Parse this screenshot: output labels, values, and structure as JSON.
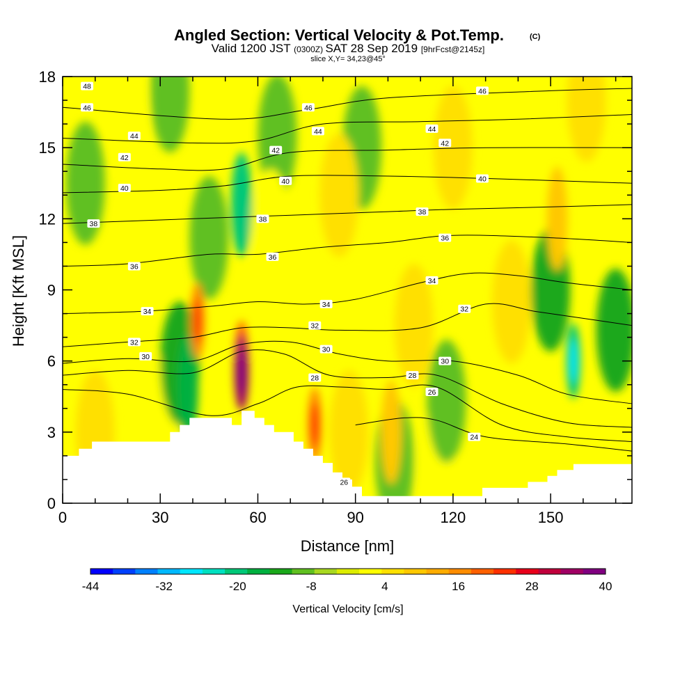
{
  "header": {
    "title": "Angled Section: Vertical Velocity & Pot.Temp.",
    "copyright": "(C)",
    "valid_prefix": "Valid 1200 JST",
    "valid_utc": "(0300Z)",
    "valid_date": "SAT 28 Sep 2019",
    "forecast": "[9hrFcst@2145z]",
    "slice": "slice X,Y= 34,23@45°"
  },
  "chart_data": {
    "type": "heatmap",
    "title": "Angled Section: Vertical Velocity & Pot.Temp.",
    "xlabel": "Distance [nm]",
    "ylabel": "Height [Kft MSL]",
    "xlim": [
      0,
      175
    ],
    "ylim": [
      0,
      18
    ],
    "x_ticks": [
      0,
      30,
      60,
      90,
      120,
      150
    ],
    "y_ticks": [
      0,
      3,
      6,
      9,
      12,
      15,
      18
    ],
    "grid": false,
    "colorbar": {
      "title": "Vertical Velocity [cm/s]",
      "placement": "bottom",
      "min": -44,
      "max": 40,
      "step": 4,
      "tick_values": [
        -44,
        -32,
        -20,
        -8,
        4,
        16,
        28,
        40
      ],
      "colors": [
        "#0000ff",
        "#0040ff",
        "#0080ff",
        "#00b8ff",
        "#00e6ff",
        "#00e0c0",
        "#00c878",
        "#00b040",
        "#1aa81a",
        "#60c020",
        "#a8d820",
        "#dcec00",
        "#ffff00",
        "#ffe000",
        "#ffc800",
        "#ffac00",
        "#ff8c00",
        "#ff6000",
        "#ff3000",
        "#e8001a",
        "#c0003c",
        "#a00064",
        "#800080"
      ]
    },
    "terrain": [
      [
        0,
        2.0
      ],
      [
        5,
        2.0
      ],
      [
        5,
        2.3
      ],
      [
        9,
        2.3
      ],
      [
        9,
        2.6
      ],
      [
        33,
        2.6
      ],
      [
        33,
        3.0
      ],
      [
        36,
        3.0
      ],
      [
        36,
        3.3
      ],
      [
        39,
        3.3
      ],
      [
        39,
        3.6
      ],
      [
        52,
        3.6
      ],
      [
        52,
        3.3
      ],
      [
        55,
        3.3
      ],
      [
        55,
        3.9
      ],
      [
        59,
        3.9
      ],
      [
        59,
        3.6
      ],
      [
        62,
        3.6
      ],
      [
        62,
        3.3
      ],
      [
        65,
        3.3
      ],
      [
        65,
        3.0
      ],
      [
        71,
        3.0
      ],
      [
        71,
        2.6
      ],
      [
        74,
        2.6
      ],
      [
        74,
        2.3
      ],
      [
        77,
        2.3
      ],
      [
        77,
        2.0
      ],
      [
        80,
        2.0
      ],
      [
        80,
        1.7
      ],
      [
        83,
        1.7
      ],
      [
        83,
        1.3
      ],
      [
        86,
        1.3
      ],
      [
        86,
        1.0
      ],
      [
        89,
        1.0
      ],
      [
        89,
        0.7
      ],
      [
        92,
        0.7
      ],
      [
        92,
        0.3
      ],
      [
        129,
        0.3
      ],
      [
        129,
        0.65
      ],
      [
        143,
        0.65
      ],
      [
        143,
        0.9
      ],
      [
        149,
        0.9
      ],
      [
        149,
        1.15
      ],
      [
        152,
        1.15
      ],
      [
        152,
        1.4
      ],
      [
        157,
        1.4
      ],
      [
        157,
        1.65
      ],
      [
        175,
        1.65
      ]
    ],
    "vertical_velocity_features": [
      {
        "x": 55,
        "y": 5.5,
        "value": 40
      },
      {
        "x": 55,
        "y": 6.1,
        "value": 24
      },
      {
        "x": 41.5,
        "y": 7.7,
        "value": 20
      },
      {
        "x": 77.5,
        "y": 3.3,
        "value": 22
      },
      {
        "x": 101,
        "y": 3.0,
        "value": 14
      },
      {
        "x": 157,
        "y": 6.0,
        "value": -20
      },
      {
        "x": 55,
        "y": 12.6,
        "value": -18
      },
      {
        "x": 38.5,
        "y": 4.9,
        "value": -16
      },
      {
        "x": 7,
        "y": 13.5,
        "value": -8
      },
      {
        "x": 102,
        "y": 1.8,
        "value": -8
      },
      {
        "x": 150,
        "y": 9.0,
        "value": -10
      },
      {
        "x": 36,
        "y": 5.9,
        "value": -10
      },
      {
        "x": 45,
        "y": 11.2,
        "value": -8
      },
      {
        "x": 92,
        "y": 15.0,
        "value": -6
      },
      {
        "x": 118,
        "y": 4.3,
        "value": -8
      },
      {
        "x": 170,
        "y": 7.3,
        "value": -10
      },
      {
        "x": 33,
        "y": 17.4,
        "value": -6
      },
      {
        "x": 66,
        "y": 15.5,
        "value": -6
      },
      {
        "x": 152,
        "y": 12.0,
        "value": 12
      },
      {
        "x": 161,
        "y": 17.0,
        "value": 8
      },
      {
        "x": 120,
        "y": 15.0,
        "value": 8
      },
      {
        "x": 138,
        "y": 8.5,
        "value": 10
      },
      {
        "x": 85,
        "y": 13.0,
        "value": 8
      },
      {
        "x": 70,
        "y": 9.0,
        "value": 6
      },
      {
        "x": 108,
        "y": 7.5,
        "value": 8
      },
      {
        "x": 10,
        "y": 3.0,
        "value": 8
      },
      {
        "x": 30,
        "y": 3.6,
        "value": 6
      },
      {
        "x": 64,
        "y": 11.5,
        "value": 6
      },
      {
        "x": 140,
        "y": 13.5,
        "value": 6
      },
      {
        "x": 88,
        "y": 3.0,
        "value": 8
      },
      {
        "x": 115,
        "y": 1.6,
        "value": 4
      },
      {
        "x": 20,
        "y": 16.5,
        "value": 4
      }
    ],
    "theta_contours": [
      {
        "value": 48,
        "points": [
          [
            0,
            18.0
          ],
          [
            175,
            18.0
          ]
        ]
      },
      {
        "value": 46,
        "points": [
          [
            0,
            16.7
          ],
          [
            50,
            16.2
          ],
          [
            75,
            16.6
          ],
          [
            100,
            17.1
          ],
          [
            150,
            17.4
          ],
          [
            175,
            17.5
          ]
        ]
      },
      {
        "value": 44,
        "points": [
          [
            0,
            15.4
          ],
          [
            40,
            15.2
          ],
          [
            60,
            15.3
          ],
          [
            80,
            16.0
          ],
          [
            110,
            16.1
          ],
          [
            140,
            16.2
          ],
          [
            175,
            16.4
          ]
        ]
      },
      {
        "value": 42,
        "points": [
          [
            0,
            14.3
          ],
          [
            30,
            14.1
          ],
          [
            50,
            14.1
          ],
          [
            70,
            14.8
          ],
          [
            100,
            14.9
          ],
          [
            130,
            15.0
          ],
          [
            175,
            15.0
          ]
        ]
      },
      {
        "value": 40,
        "points": [
          [
            0,
            13.1
          ],
          [
            30,
            13.2
          ],
          [
            50,
            13.4
          ],
          [
            70,
            13.8
          ],
          [
            100,
            13.8
          ],
          [
            130,
            13.7
          ],
          [
            175,
            13.5
          ]
        ]
      },
      {
        "value": 38,
        "points": [
          [
            0,
            11.8
          ],
          [
            20,
            11.9
          ],
          [
            40,
            12.0
          ],
          [
            60,
            12.1
          ],
          [
            80,
            12.2
          ],
          [
            100,
            12.3
          ],
          [
            120,
            12.4
          ],
          [
            150,
            12.5
          ],
          [
            175,
            12.6
          ]
        ]
      },
      {
        "value": 36,
        "points": [
          [
            0,
            10.0
          ],
          [
            20,
            10.1
          ],
          [
            45,
            10.5
          ],
          [
            60,
            10.5
          ],
          [
            80,
            10.8
          ],
          [
            100,
            11.0
          ],
          [
            120,
            11.3
          ],
          [
            150,
            11.2
          ],
          [
            175,
            11.0
          ]
        ]
      },
      {
        "value": 34,
        "points": [
          [
            0,
            8.0
          ],
          [
            25,
            8.1
          ],
          [
            45,
            8.3
          ],
          [
            60,
            8.5
          ],
          [
            75,
            8.4
          ],
          [
            90,
            8.6
          ],
          [
            110,
            9.3
          ],
          [
            125,
            9.7
          ],
          [
            140,
            9.6
          ],
          [
            155,
            9.3
          ],
          [
            175,
            9.0
          ]
        ]
      },
      {
        "value": 32,
        "points": [
          [
            0,
            6.6
          ],
          [
            20,
            6.8
          ],
          [
            40,
            7.0
          ],
          [
            55,
            7.4
          ],
          [
            70,
            7.4
          ],
          [
            85,
            7.3
          ],
          [
            110,
            7.4
          ],
          [
            130,
            8.4
          ],
          [
            145,
            8.1
          ],
          [
            160,
            7.8
          ],
          [
            175,
            7.5
          ]
        ]
      },
      {
        "value": 30,
        "points": [
          [
            0,
            5.9
          ],
          [
            20,
            6.1
          ],
          [
            40,
            6.0
          ],
          [
            55,
            6.7
          ],
          [
            70,
            6.8
          ],
          [
            85,
            6.3
          ],
          [
            100,
            6.0
          ],
          [
            120,
            6.0
          ],
          [
            140,
            5.4
          ],
          [
            155,
            4.6
          ],
          [
            175,
            4.2
          ]
        ]
      },
      {
        "value": 28,
        "points": [
          [
            0,
            5.4
          ],
          [
            20,
            5.6
          ],
          [
            40,
            5.5
          ],
          [
            55,
            6.4
          ],
          [
            68,
            6.3
          ],
          [
            82,
            5.4
          ],
          [
            100,
            5.3
          ],
          [
            115,
            5.4
          ],
          [
            135,
            4.2
          ],
          [
            155,
            3.4
          ],
          [
            175,
            3.2
          ]
        ]
      },
      {
        "value": 26,
        "points": [
          [
            0,
            4.8
          ],
          [
            20,
            4.6
          ],
          [
            45,
            3.7
          ],
          [
            60,
            4.2
          ],
          [
            72,
            4.9
          ],
          [
            86,
            4.9
          ],
          [
            100,
            4.8
          ],
          [
            115,
            4.9
          ],
          [
            135,
            3.3
          ],
          [
            155,
            2.8
          ],
          [
            175,
            2.6
          ]
        ]
      },
      {
        "value": 24,
        "points": [
          [
            90,
            3.3
          ],
          [
            105,
            3.6
          ],
          [
            115,
            3.5
          ],
          [
            130,
            2.8
          ],
          [
            155,
            2.5
          ],
          [
            175,
            2.2
          ]
        ]
      }
    ],
    "contour_labels": [
      {
        "text": "48",
        "x": 7.5,
        "y": 17.6
      },
      {
        "text": "46",
        "x": 7.5,
        "y": 16.7
      },
      {
        "text": "46",
        "x": 75.5,
        "y": 16.7
      },
      {
        "text": "46",
        "x": 129,
        "y": 17.4
      },
      {
        "text": "44",
        "x": 22,
        "y": 15.5
      },
      {
        "text": "44",
        "x": 78.5,
        "y": 15.7
      },
      {
        "text": "44",
        "x": 113.5,
        "y": 15.8
      },
      {
        "text": "42",
        "x": 19,
        "y": 14.6
      },
      {
        "text": "42",
        "x": 65.5,
        "y": 14.9
      },
      {
        "text": "42",
        "x": 117.5,
        "y": 15.2
      },
      {
        "text": "40",
        "x": 19,
        "y": 13.3
      },
      {
        "text": "40",
        "x": 68.5,
        "y": 13.6
      },
      {
        "text": "40",
        "x": 129,
        "y": 13.7
      },
      {
        "text": "38",
        "x": 9.5,
        "y": 11.8
      },
      {
        "text": "38",
        "x": 61.5,
        "y": 12.0
      },
      {
        "text": "38",
        "x": 110.5,
        "y": 12.3
      },
      {
        "text": "36",
        "x": 22,
        "y": 10.0
      },
      {
        "text": "36",
        "x": 64.5,
        "y": 10.4
      },
      {
        "text": "36",
        "x": 117.5,
        "y": 11.2
      },
      {
        "text": "34",
        "x": 26,
        "y": 8.1
      },
      {
        "text": "34",
        "x": 81,
        "y": 8.4
      },
      {
        "text": "34",
        "x": 113.5,
        "y": 9.4
      },
      {
        "text": "32",
        "x": 22,
        "y": 6.8
      },
      {
        "text": "32",
        "x": 77.5,
        "y": 7.5
      },
      {
        "text": "32",
        "x": 123.5,
        "y": 8.2
      },
      {
        "text": "30",
        "x": 25.5,
        "y": 6.2
      },
      {
        "text": "30",
        "x": 81,
        "y": 6.5
      },
      {
        "text": "30",
        "x": 117.5,
        "y": 6.0
      },
      {
        "text": "28",
        "x": 77.5,
        "y": 5.3
      },
      {
        "text": "28",
        "x": 107.5,
        "y": 5.4
      },
      {
        "text": "26",
        "x": 113.5,
        "y": 4.7
      },
      {
        "text": "26",
        "x": 86.5,
        "y": 0.9
      },
      {
        "text": "24",
        "x": 126.5,
        "y": 2.8
      }
    ]
  }
}
